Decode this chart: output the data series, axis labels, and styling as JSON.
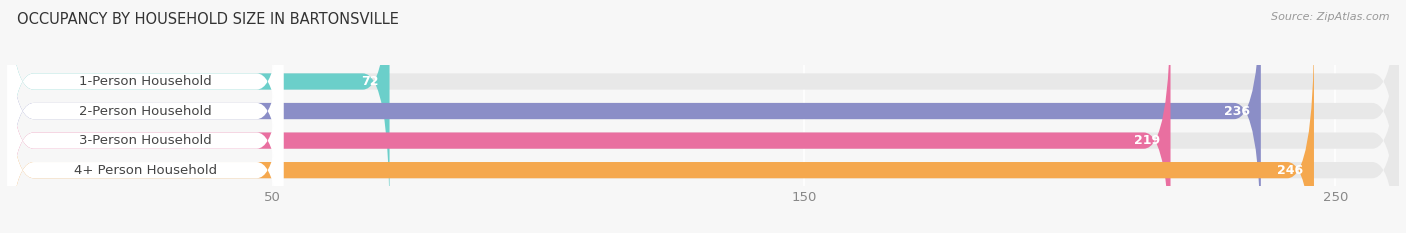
{
  "title": "OCCUPANCY BY HOUSEHOLD SIZE IN BARTONSVILLE",
  "source": "Source: ZipAtlas.com",
  "categories": [
    "1-Person Household",
    "2-Person Household",
    "3-Person Household",
    "4+ Person Household"
  ],
  "values": [
    72,
    236,
    219,
    246
  ],
  "bar_colors": [
    "#6bcfca",
    "#8b8ec7",
    "#e96fa0",
    "#f5a84e"
  ],
  "bar_bg_color": "#e8e8e8",
  "label_bg_color": "#ffffff",
  "xlim_max": 262,
  "xticks": [
    50,
    150,
    250
  ],
  "figsize": [
    14.06,
    2.33
  ],
  "dpi": 100,
  "label_fontsize": 9.5,
  "value_fontsize": 9,
  "title_fontsize": 10.5,
  "source_fontsize": 8,
  "bar_height": 0.55,
  "bg_color": "#f7f7f7",
  "text_color": "#444444",
  "tick_color": "#888888"
}
